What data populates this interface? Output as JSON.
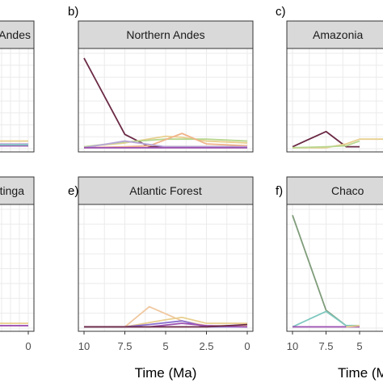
{
  "colors": {
    "strip_fill": "#d9d9d9",
    "strip_border": "#333333",
    "panel_border": "#333333",
    "grid": "#ebebeb",
    "background": "#ffffff"
  },
  "chart_data": [
    {
      "type": "line",
      "label": "",
      "title": "Andes",
      "xlabel": "",
      "ylabel": "",
      "xlim": [
        10,
        0
      ],
      "ylim": [
        0,
        1
      ],
      "x_ticks": [],
      "x_tick_labels": [],
      "series": [
        {
          "color": "#e8cf8f",
          "x": [
            10,
            0
          ],
          "y": [
            0.08,
            0.08
          ]
        },
        {
          "color": "#b8a7d9",
          "x": [
            10,
            0
          ],
          "y": [
            0.05,
            0.05
          ]
        },
        {
          "color": "#9b4fb0",
          "x": [
            10,
            0
          ],
          "y": [
            0.03,
            0.03
          ]
        },
        {
          "color": "#7fc8c0",
          "x": [
            10,
            0
          ],
          "y": [
            0.04,
            0.04
          ]
        }
      ]
    },
    {
      "type": "line",
      "label": "b)",
      "title": "Northern Andes",
      "xlabel": "",
      "ylabel": "",
      "xlim": [
        10,
        0
      ],
      "ylim": [
        0,
        1
      ],
      "x_ticks": [],
      "x_tick_labels": [],
      "series": [
        {
          "color": "#6b2a45",
          "x": [
            10,
            7.5,
            6,
            5,
            2.5,
            0
          ],
          "y": [
            0.95,
            0.15,
            0.02,
            0.02,
            0.02,
            0.02
          ]
        },
        {
          "color": "#e8cf8f",
          "x": [
            10,
            7.5,
            5,
            4,
            2.5,
            0
          ],
          "y": [
            0.02,
            0.06,
            0.13,
            0.12,
            0.08,
            0.06
          ]
        },
        {
          "color": "#b8d68f",
          "x": [
            10,
            7.5,
            5,
            2.5,
            0
          ],
          "y": [
            0.02,
            0.07,
            0.1,
            0.1,
            0.08
          ]
        },
        {
          "color": "#f0b48a",
          "x": [
            10,
            7.5,
            6,
            4,
            2.5,
            0
          ],
          "y": [
            0.01,
            0.02,
            0.03,
            0.16,
            0.05,
            0.03
          ]
        },
        {
          "color": "#b8a7d9",
          "x": [
            10,
            7.5,
            5,
            2.5,
            0
          ],
          "y": [
            0.01,
            0.08,
            0.02,
            0.02,
            0.02
          ]
        },
        {
          "color": "#9b4fb0",
          "x": [
            10,
            0
          ],
          "y": [
            0.01,
            0.01
          ]
        }
      ]
    },
    {
      "type": "line",
      "label": "c)",
      "title": "Amazonia",
      "xlabel": "",
      "ylabel": "",
      "xlim": [
        10,
        0
      ],
      "ylim": [
        0,
        1
      ],
      "x_ticks": [],
      "x_tick_labels": [],
      "series": [
        {
          "color": "#6b2a45",
          "x": [
            10,
            7.5,
            6,
            5
          ],
          "y": [
            0.02,
            0.18,
            0.02,
            0.02
          ]
        },
        {
          "color": "#e8cf8f",
          "x": [
            10,
            7.5,
            6,
            5,
            2.5
          ],
          "y": [
            0.01,
            0.01,
            0.05,
            0.1,
            0.1
          ]
        },
        {
          "color": "#b8d68f",
          "x": [
            10,
            7.5,
            6,
            5
          ],
          "y": [
            0.01,
            0.02,
            0.03,
            0.08
          ]
        }
      ]
    },
    {
      "type": "line",
      "label": "",
      "title": "Caatinga",
      "xlabel": "",
      "ylabel": "",
      "xlim": [
        10,
        0
      ],
      "ylim": [
        0,
        1
      ],
      "x_ticks": [
        0
      ],
      "x_tick_labels": [
        "0"
      ],
      "series": [
        {
          "color": "#e8cf8f",
          "x": [
            10,
            0
          ],
          "y": [
            0.04,
            0.04
          ]
        },
        {
          "color": "#9b4fb0",
          "x": [
            10,
            0
          ],
          "y": [
            0.02,
            0.02
          ]
        }
      ]
    },
    {
      "type": "line",
      "label": "e)",
      "title": "Atlantic Forest",
      "xlabel": "Time (Ma)",
      "ylabel": "",
      "xlim": [
        10,
        0
      ],
      "ylim": [
        0,
        1
      ],
      "x_ticks": [
        10,
        7.5,
        5,
        2.5,
        0
      ],
      "x_tick_labels": [
        "10",
        "7.5",
        "5",
        "2.5",
        "0"
      ],
      "series": [
        {
          "color": "#f0c8a0",
          "x": [
            10,
            7.5,
            6,
            4,
            2.5,
            0
          ],
          "y": [
            0.01,
            0.01,
            0.18,
            0.06,
            0.02,
            0.02
          ]
        },
        {
          "color": "#e8cf8f",
          "x": [
            10,
            7.5,
            5,
            4,
            2.5,
            0
          ],
          "y": [
            0.01,
            0.01,
            0.07,
            0.09,
            0.04,
            0.04
          ]
        },
        {
          "color": "#8a6fd0",
          "x": [
            10,
            7.5,
            6,
            4,
            2.5,
            0
          ],
          "y": [
            0.01,
            0.01,
            0.03,
            0.06,
            0.01,
            0.01
          ]
        },
        {
          "color": "#9b4fb0",
          "x": [
            10,
            6,
            4,
            2.5,
            0
          ],
          "y": [
            0.01,
            0.01,
            0.04,
            0.02,
            0.01
          ]
        },
        {
          "color": "#6b2a45",
          "x": [
            10,
            2.5,
            0
          ],
          "y": [
            0.01,
            0.01,
            0.03
          ]
        }
      ]
    },
    {
      "type": "line",
      "label": "f)",
      "title": "Chaco",
      "xlabel": "Time (Ma)",
      "ylabel": "",
      "xlim": [
        10,
        0
      ],
      "ylim": [
        0,
        1
      ],
      "x_ticks": [
        10,
        7.5,
        5
      ],
      "x_tick_labels": [
        "10",
        "7.5",
        "5"
      ],
      "series": [
        {
          "color": "#7f9c7a",
          "x": [
            10,
            7.5,
            6,
            5
          ],
          "y": [
            0.95,
            0.15,
            0.02,
            0.02
          ]
        },
        {
          "color": "#7fc8c0",
          "x": [
            10,
            7.5,
            6,
            5
          ],
          "y": [
            0.01,
            0.14,
            0.02,
            0.02
          ]
        },
        {
          "color": "#9b4fb0",
          "x": [
            10,
            5
          ],
          "y": [
            0.01,
            0.01
          ]
        },
        {
          "color": "#e8cf8f",
          "x": [
            6,
            5
          ],
          "y": [
            0.01,
            0.02
          ]
        }
      ]
    }
  ]
}
